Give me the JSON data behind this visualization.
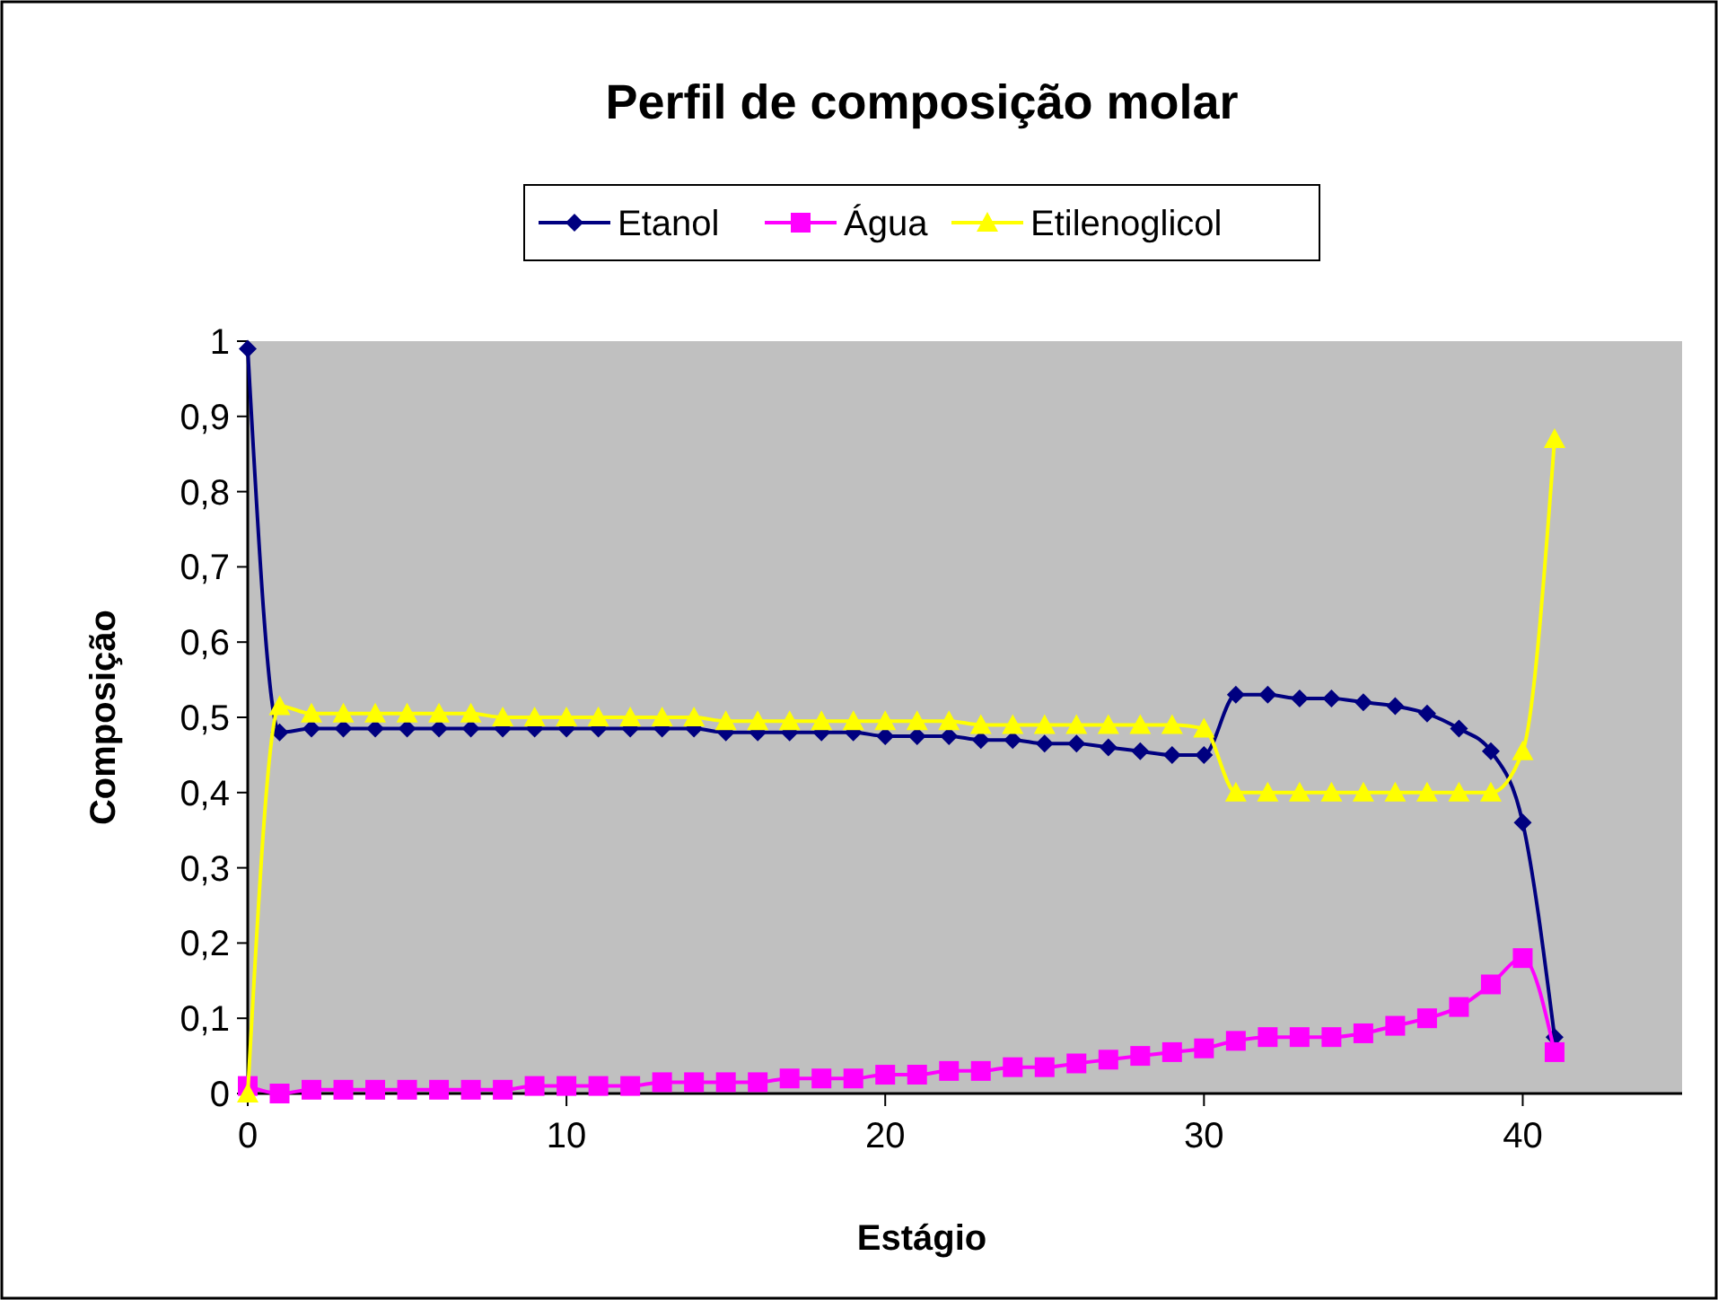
{
  "chart_data": {
    "type": "line",
    "title": "Perfil de composição molar",
    "xlabel": "Estágio",
    "ylabel": "Composição",
    "x": [
      0,
      1,
      2,
      3,
      4,
      5,
      6,
      7,
      8,
      9,
      10,
      11,
      12,
      13,
      14,
      15,
      16,
      17,
      18,
      19,
      20,
      21,
      22,
      23,
      24,
      25,
      26,
      27,
      28,
      29,
      30,
      31,
      32,
      33,
      34,
      35,
      36,
      37,
      38,
      39,
      40,
      41
    ],
    "series": [
      {
        "name": "Etanol",
        "color": "#000080",
        "marker": "diamond",
        "values": [
          0.99,
          0.48,
          0.485,
          0.485,
          0.485,
          0.485,
          0.485,
          0.485,
          0.485,
          0.485,
          0.485,
          0.485,
          0.485,
          0.485,
          0.485,
          0.48,
          0.48,
          0.48,
          0.48,
          0.48,
          0.475,
          0.475,
          0.475,
          0.47,
          0.47,
          0.465,
          0.465,
          0.46,
          0.455,
          0.45,
          0.45,
          0.53,
          0.53,
          0.525,
          0.525,
          0.52,
          0.515,
          0.505,
          0.485,
          0.455,
          0.36,
          0.075
        ]
      },
      {
        "name": "Água",
        "color": "#ff00ff",
        "marker": "square",
        "values": [
          0.01,
          0,
          0.005,
          0.005,
          0.005,
          0.005,
          0.005,
          0.005,
          0.005,
          0.01,
          0.01,
          0.01,
          0.01,
          0.015,
          0.015,
          0.015,
          0.015,
          0.02,
          0.02,
          0.02,
          0.025,
          0.025,
          0.03,
          0.03,
          0.035,
          0.035,
          0.04,
          0.045,
          0.05,
          0.055,
          0.06,
          0.07,
          0.075,
          0.075,
          0.075,
          0.08,
          0.09,
          0.1,
          0.115,
          0.145,
          0.18,
          0.055
        ]
      },
      {
        "name": "Etilenoglicol",
        "color": "#ffff00",
        "marker": "triangle",
        "values": [
          0,
          0.515,
          0.505,
          0.505,
          0.505,
          0.505,
          0.505,
          0.505,
          0.5,
          0.5,
          0.5,
          0.5,
          0.5,
          0.5,
          0.5,
          0.495,
          0.495,
          0.495,
          0.495,
          0.495,
          0.495,
          0.495,
          0.495,
          0.49,
          0.49,
          0.49,
          0.49,
          0.49,
          0.49,
          0.49,
          0.485,
          0.4,
          0.4,
          0.4,
          0.4,
          0.4,
          0.4,
          0.4,
          0.4,
          0.4,
          0.455,
          0.87
        ]
      }
    ],
    "xlim": [
      0,
      45
    ],
    "xticks": [
      0,
      10,
      20,
      30,
      40
    ],
    "ylim": [
      0,
      1
    ],
    "yticks": [
      0,
      {
        "value": 0.1,
        "label": "0,1"
      },
      {
        "value": 0.2,
        "label": "0,2"
      },
      {
        "value": 0.3,
        "label": "0,3"
      },
      {
        "value": 0.4,
        "label": "0,4"
      },
      {
        "value": 0.5,
        "label": "0,5"
      },
      {
        "value": 0.6,
        "label": "0,6"
      },
      {
        "value": 0.7,
        "label": "0,7"
      },
      {
        "value": 0.8,
        "label": "0,8"
      },
      {
        "value": 0.9,
        "label": "0,9"
      },
      1
    ],
    "grid": false,
    "legend": "top"
  }
}
